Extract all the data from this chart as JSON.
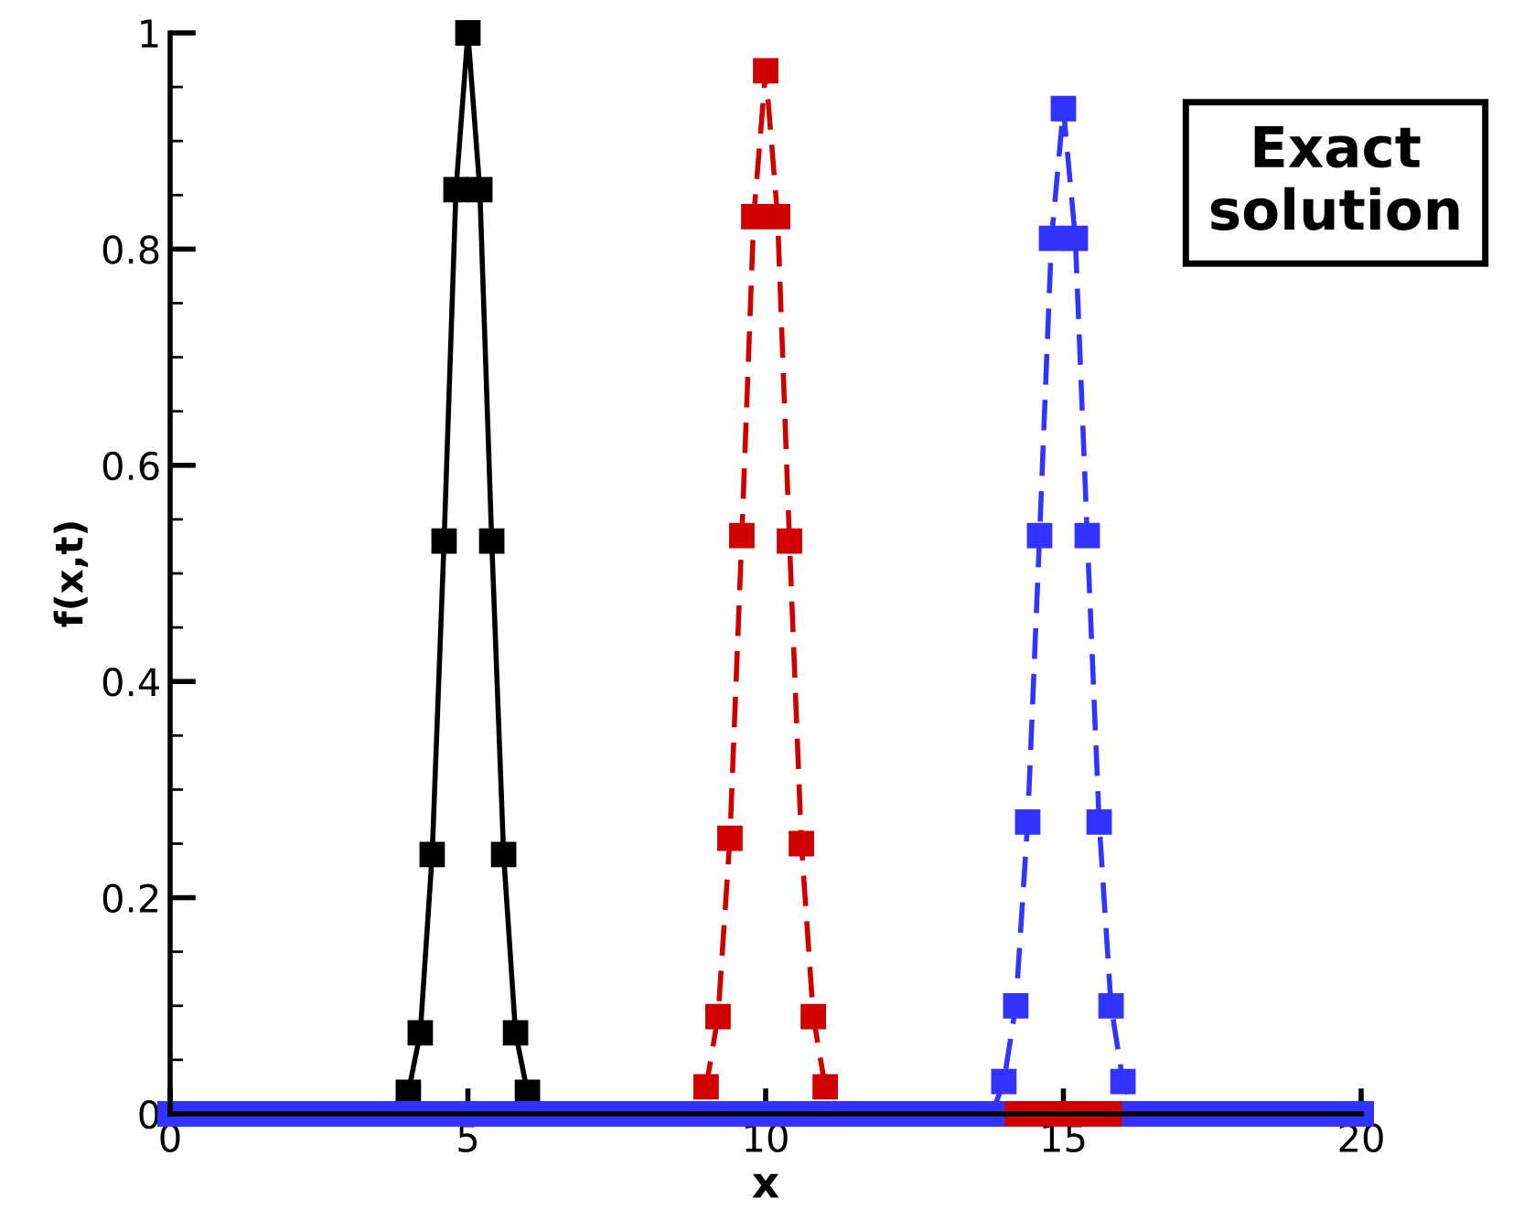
{
  "chart_data": {
    "type": "line",
    "xlabel": "x",
    "ylabel": "f(x,t)",
    "xlim": [
      0,
      20
    ],
    "ylim": [
      0,
      1
    ],
    "xticks": [
      0,
      5,
      10,
      15,
      20
    ],
    "yticks": [
      0,
      0.2,
      0.4,
      0.6,
      0.8,
      1
    ],
    "grid": false,
    "marker": "square",
    "annotations": [
      "Exact solution"
    ],
    "series": [
      {
        "color": "#000000",
        "line_style": "solid",
        "x": [
          0,
          3.6,
          3.8,
          4.0,
          4.2,
          4.4,
          4.6,
          4.8,
          5.0,
          5.2,
          5.4,
          5.6,
          5.8,
          6.0,
          6.2,
          6.4,
          20
        ],
        "values": [
          0,
          0,
          0,
          0.02,
          0.075,
          0.24,
          0.53,
          0.855,
          1,
          0.855,
          0.53,
          0.24,
          0.075,
          0.02,
          0,
          0,
          0
        ]
      },
      {
        "color": "#d00000",
        "line_style": "dashed",
        "x": [
          0,
          8.6,
          8.8,
          9.0,
          9.2,
          9.4,
          9.6,
          9.8,
          10.0,
          10.2,
          10.4,
          10.6,
          10.8,
          11.0,
          11.2,
          11.4,
          14.0,
          14.2,
          14.4,
          14.6,
          14.8,
          15.0,
          15.2,
          15.4,
          15.6,
          15.8,
          16.0,
          20
        ],
        "values": [
          0,
          0,
          0,
          0.025,
          0.09,
          0.255,
          0.535,
          0.83,
          0.965,
          0.83,
          0.53,
          0.25,
          0.09,
          0.025,
          0,
          0,
          0,
          0,
          0,
          0,
          0,
          0,
          0,
          0,
          0,
          0,
          0,
          0
        ]
      },
      {
        "color": "#3333ff",
        "line_style": "dashed",
        "x": [
          0,
          0.2,
          0.4,
          0.6,
          0.8,
          1.0,
          1.2,
          1.4,
          1.6,
          1.8,
          2.0,
          2.2,
          2.4,
          2.6,
          2.8,
          3.0,
          3.2,
          3.4,
          3.6,
          3.8,
          4.0,
          4.2,
          4.4,
          4.6,
          4.8,
          5.0,
          5.2,
          5.4,
          5.6,
          5.8,
          6.0,
          6.2,
          6.4,
          6.6,
          6.8,
          7.0,
          7.2,
          7.4,
          7.6,
          7.8,
          8.0,
          8.2,
          8.4,
          8.6,
          8.8,
          9.0,
          9.2,
          9.4,
          9.6,
          9.8,
          10.0,
          10.2,
          10.4,
          10.6,
          10.8,
          11.0,
          11.2,
          11.4,
          11.6,
          11.8,
          12.0,
          12.2,
          12.4,
          12.6,
          12.8,
          13.0,
          13.2,
          13.4,
          13.6,
          13.8,
          14.0,
          14.2,
          14.4,
          14.6,
          14.8,
          15.0,
          15.2,
          15.4,
          15.6,
          15.8,
          16.0,
          16.2,
          16.4,
          16.6,
          16.8,
          17.0,
          17.2,
          17.4,
          17.6,
          17.8,
          18.0,
          18.2,
          18.4,
          18.6,
          18.8,
          19.0,
          19.2,
          19.4,
          19.6,
          19.8,
          20.0
        ],
        "values": [
          0,
          0,
          0,
          0,
          0,
          0,
          0,
          0,
          0,
          0,
          0,
          0,
          0,
          0,
          0,
          0,
          0,
          0,
          0,
          0,
          0,
          0,
          0,
          0,
          0,
          0,
          0,
          0,
          0,
          0,
          0,
          0,
          0,
          0,
          0,
          0,
          0,
          0,
          0,
          0,
          0,
          0,
          0,
          0,
          0,
          0,
          0,
          0,
          0,
          0,
          0,
          0,
          0,
          0,
          0,
          0,
          0,
          0,
          0,
          0,
          0,
          0,
          0,
          0,
          0,
          0,
          0,
          0,
          0,
          0,
          0.03,
          0.1,
          0.27,
          0.535,
          0.81,
          0.93,
          0.81,
          0.535,
          0.27,
          0.1,
          0.03,
          0,
          0,
          0,
          0,
          0,
          0,
          0,
          0,
          0,
          0,
          0,
          0,
          0,
          0,
          0,
          0,
          0,
          0,
          0,
          0
        ]
      }
    ]
  }
}
